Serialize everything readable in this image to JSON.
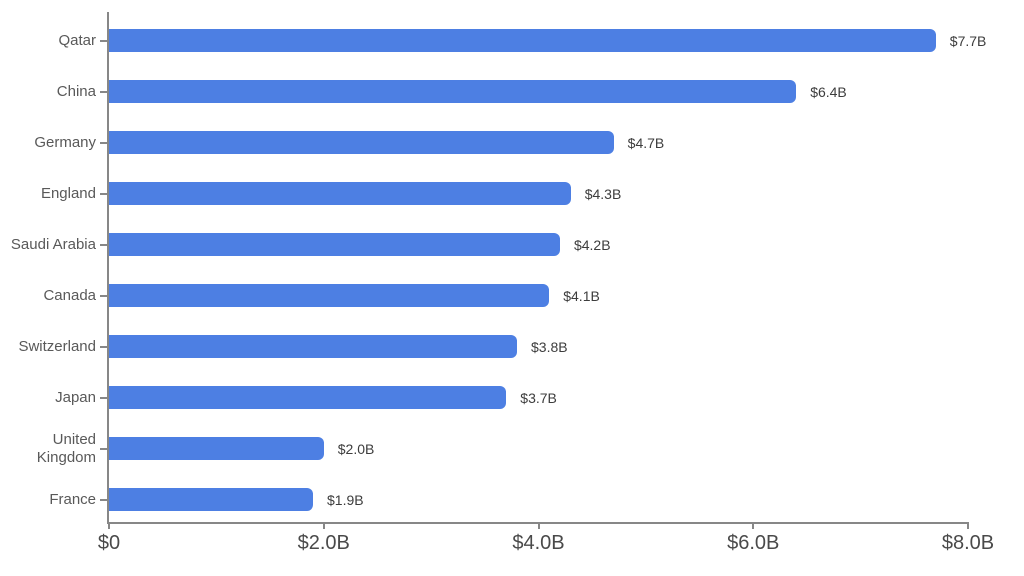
{
  "chart_data": {
    "type": "bar",
    "orientation": "horizontal",
    "title": "",
    "xlabel": "",
    "ylabel": "",
    "grid": false,
    "legend": "none",
    "categories": [
      "Qatar",
      "China",
      "Germany",
      "England",
      "Saudi Arabia",
      "Canada",
      "Switzerland",
      "Japan",
      "United Kingdom",
      "France"
    ],
    "values": [
      7.7,
      6.4,
      4.7,
      4.3,
      4.2,
      4.1,
      3.8,
      3.7,
      2.0,
      1.9
    ],
    "value_labels": [
      "$7.7B",
      "$6.4B",
      "$4.7B",
      "$4.3B",
      "$4.2B",
      "$4.1B",
      "$3.8B",
      "$3.7B",
      "$2.0B",
      "$1.9B"
    ],
    "x_ticks": [
      {
        "label": "$0",
        "value": 0
      },
      {
        "label": "$2.0B",
        "value": 2
      },
      {
        "label": "$4.0B",
        "value": 4
      },
      {
        "label": "$6.0B",
        "value": 6
      },
      {
        "label": "$8.0B",
        "value": 8
      }
    ],
    "xlim": [
      0,
      8
    ],
    "colors": {
      "bar": "#4D7FE3",
      "axis": "#878787",
      "category_label": "#595959",
      "value_label": "#3D3D3D",
      "tick_label": "#4A4A4A",
      "background": "#FFFFFF"
    }
  }
}
